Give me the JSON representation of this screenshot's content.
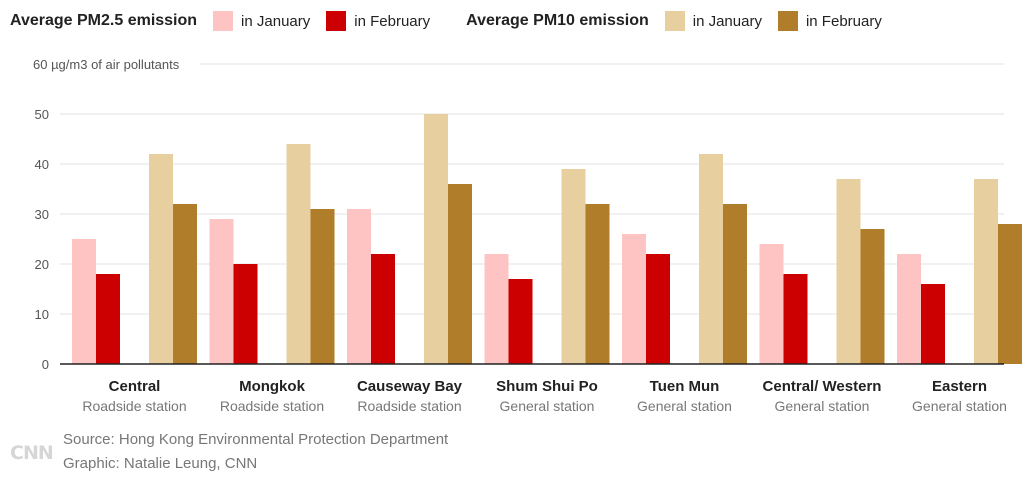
{
  "legend": {
    "pm25_title": "Average PM2.5 emission",
    "pm25_jan": "in January",
    "pm25_feb": "in February",
    "pm10_title": "Average PM10 emission",
    "pm10_jan": "in January",
    "pm10_feb": "in February"
  },
  "colors": {
    "pm25_jan": "#fec3c3",
    "pm25_feb": "#cc0000",
    "pm10_jan": "#e8cf9f",
    "pm10_feb": "#b07d2b",
    "grid": "#e3e3e3",
    "baseline": "#222222"
  },
  "footer": {
    "logo": "CNN",
    "source": "Source: Hong Kong Environmental Protection Department",
    "credit": "Graphic: Natalie Leung, CNN"
  },
  "chart_data": {
    "type": "bar",
    "ylabel": "60 µg/m3 of air pollutants",
    "ylim": [
      0,
      60
    ],
    "yticks": [
      0,
      10,
      20,
      30,
      40,
      50
    ],
    "grid": true,
    "categories": [
      "Central",
      "Mongkok",
      "Causeway Bay",
      "Shum Shui Po",
      "Tuen Mun",
      "Central/ Western",
      "Eastern"
    ],
    "subcategories": [
      "Roadside station",
      "Roadside station",
      "Roadside station",
      "General station",
      "General station",
      "General station",
      "General station"
    ],
    "series": [
      {
        "name": "Average PM2.5 emission in January",
        "values": [
          25,
          29,
          31,
          22,
          26,
          24,
          22
        ]
      },
      {
        "name": "Average PM2.5 emission in February",
        "values": [
          18,
          20,
          22,
          17,
          22,
          18,
          16
        ]
      },
      {
        "name": "Average PM10 emission in January",
        "values": [
          42,
          44,
          50,
          39,
          42,
          37,
          37
        ]
      },
      {
        "name": "Average PM10 emission in February",
        "values": [
          32,
          31,
          36,
          32,
          32,
          27,
          28
        ]
      }
    ]
  }
}
